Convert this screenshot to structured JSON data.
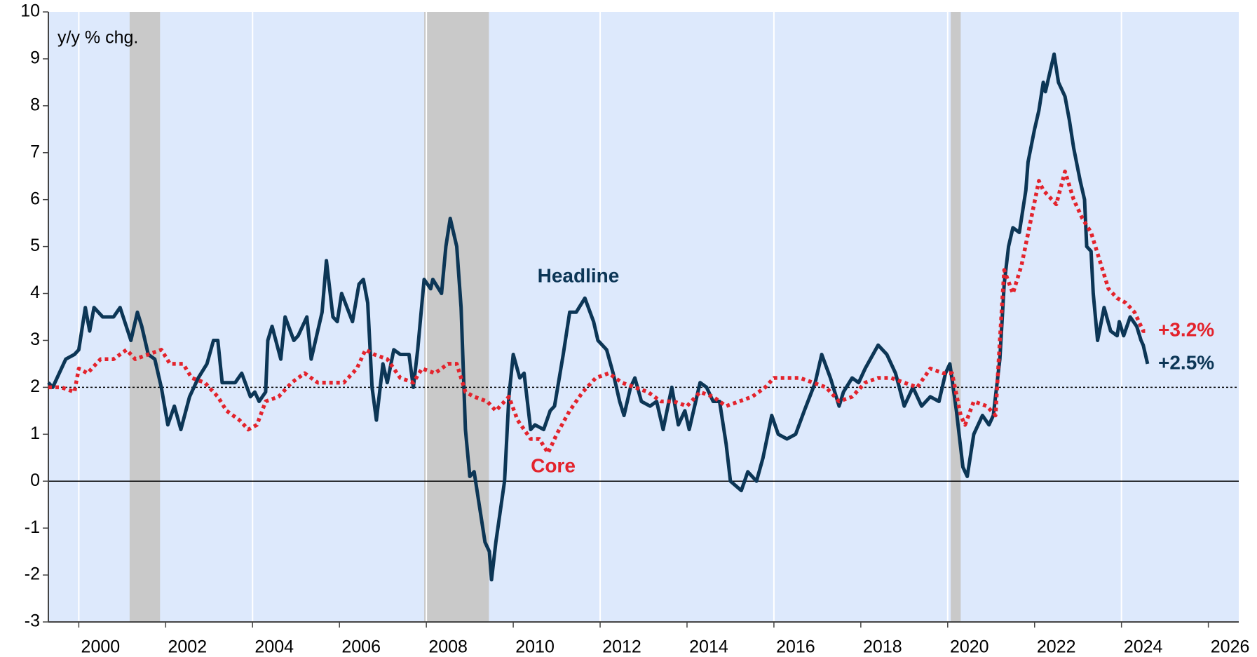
{
  "chart_data": {
    "type": "line",
    "ylabel": "y/y % chg.",
    "xlim": [
      1999.3,
      2026.7
    ],
    "ylim": [
      -3,
      10
    ],
    "xticks": [
      2000,
      2002,
      2004,
      2006,
      2008,
      2010,
      2012,
      2014,
      2016,
      2018,
      2020,
      2022,
      2024,
      2026
    ],
    "yticks": [
      -3,
      -2,
      -1,
      0,
      1,
      2,
      3,
      4,
      5,
      6,
      7,
      8,
      9,
      10
    ],
    "grid": true,
    "reference_line": 2,
    "recessions": [
      [
        2001.17,
        2001.87
      ],
      [
        2007.95,
        2009.44
      ],
      [
        2020.07,
        2020.3
      ]
    ],
    "series": [
      {
        "name": "Headline",
        "color": "#0c3656",
        "style": "solid",
        "end_label": "+2.5%",
        "x": [
          1999.3,
          1999.4,
          1999.55,
          1999.7,
          1999.9,
          2000.0,
          2000.15,
          2000.25,
          2000.35,
          2000.55,
          2000.8,
          2000.95,
          2001.2,
          2001.35,
          2001.45,
          2001.6,
          2001.75,
          2001.9,
          2002.05,
          2002.2,
          2002.35,
          2002.55,
          2002.75,
          2002.95,
          2003.1,
          2003.2,
          2003.3,
          2003.6,
          2003.75,
          2003.95,
          2004.05,
          2004.15,
          2004.3,
          2004.35,
          2004.45,
          2004.65,
          2004.75,
          2004.95,
          2005.05,
          2005.25,
          2005.35,
          2005.6,
          2005.7,
          2005.85,
          2005.95,
          2006.05,
          2006.3,
          2006.45,
          2006.55,
          2006.65,
          2006.75,
          2006.85,
          2007.0,
          2007.1,
          2007.25,
          2007.4,
          2007.6,
          2007.7,
          2007.8,
          2007.95,
          2008.1,
          2008.15,
          2008.35,
          2008.45,
          2008.55,
          2008.7,
          2008.8,
          2008.9,
          2009.0,
          2009.1,
          2009.2,
          2009.35,
          2009.45,
          2009.5,
          2009.6,
          2009.8,
          2009.9,
          2010.0,
          2010.15,
          2010.25,
          2010.4,
          2010.5,
          2010.7,
          2010.85,
          2010.95,
          2011.15,
          2011.3,
          2011.45,
          2011.65,
          2011.85,
          2011.95,
          2012.15,
          2012.3,
          2012.45,
          2012.55,
          2012.7,
          2012.8,
          2012.95,
          2013.15,
          2013.3,
          2013.45,
          2013.65,
          2013.8,
          2013.95,
          2014.05,
          2014.3,
          2014.45,
          2014.6,
          2014.75,
          2014.9,
          2015.0,
          2015.25,
          2015.4,
          2015.6,
          2015.75,
          2015.95,
          2016.1,
          2016.3,
          2016.5,
          2016.7,
          2016.95,
          2017.1,
          2017.3,
          2017.5,
          2017.6,
          2017.8,
          2017.95,
          2018.1,
          2018.4,
          2018.6,
          2018.8,
          2019.0,
          2019.2,
          2019.4,
          2019.6,
          2019.8,
          2019.95,
          2020.05,
          2020.2,
          2020.35,
          2020.45,
          2020.6,
          2020.8,
          2020.95,
          2021.05,
          2021.2,
          2021.3,
          2021.4,
          2021.5,
          2021.65,
          2021.8,
          2021.85,
          2022.0,
          2022.1,
          2022.2,
          2022.25,
          2022.45,
          2022.55,
          2022.7,
          2022.8,
          2022.9,
          2023.05,
          2023.15,
          2023.2,
          2023.3,
          2023.35,
          2023.45,
          2023.6,
          2023.75,
          2023.9,
          2023.95,
          2024.05,
          2024.2,
          2024.35,
          2024.45,
          2024.5,
          2024.6
        ],
        "values": [
          2.1,
          2.0,
          2.3,
          2.6,
          2.7,
          2.8,
          3.7,
          3.2,
          3.7,
          3.5,
          3.5,
          3.7,
          3.0,
          3.6,
          3.3,
          2.7,
          2.6,
          2.0,
          1.2,
          1.6,
          1.1,
          1.8,
          2.2,
          2.5,
          3.0,
          3.0,
          2.1,
          2.1,
          2.3,
          1.8,
          1.9,
          1.7,
          1.9,
          3.0,
          3.3,
          2.6,
          3.5,
          3.0,
          3.1,
          3.5,
          2.6,
          3.6,
          4.7,
          3.5,
          3.4,
          4.0,
          3.4,
          4.2,
          4.3,
          3.8,
          2.0,
          1.3,
          2.5,
          2.1,
          2.8,
          2.7,
          2.7,
          2.0,
          2.8,
          4.3,
          4.1,
          4.3,
          4.0,
          5.0,
          5.6,
          5.0,
          3.7,
          1.1,
          0.1,
          0.2,
          -0.4,
          -1.3,
          -1.5,
          -2.1,
          -1.3,
          0.0,
          1.8,
          2.7,
          2.2,
          2.3,
          1.1,
          1.2,
          1.1,
          1.5,
          1.6,
          2.7,
          3.6,
          3.6,
          3.9,
          3.4,
          3.0,
          2.8,
          2.3,
          1.7,
          1.4,
          2.0,
          2.2,
          1.7,
          1.6,
          1.7,
          1.1,
          2.0,
          1.2,
          1.5,
          1.1,
          2.1,
          2.0,
          1.7,
          1.7,
          0.8,
          0.0,
          -0.2,
          0.2,
          0.0,
          0.5,
          1.4,
          1.0,
          0.9,
          1.0,
          1.5,
          2.1,
          2.7,
          2.2,
          1.6,
          1.9,
          2.2,
          2.1,
          2.4,
          2.9,
          2.7,
          2.3,
          1.6,
          2.0,
          1.6,
          1.8,
          1.7,
          2.3,
          2.5,
          1.5,
          0.3,
          0.1,
          1.0,
          1.4,
          1.2,
          1.4,
          2.6,
          4.2,
          5.0,
          5.4,
          5.3,
          6.2,
          6.8,
          7.5,
          7.9,
          8.5,
          8.3,
          9.1,
          8.5,
          8.2,
          7.7,
          7.1,
          6.4,
          6.0,
          5.0,
          4.9,
          4.0,
          3.0,
          3.7,
          3.2,
          3.1,
          3.4,
          3.1,
          3.5,
          3.3,
          3.0,
          2.9,
          2.5
        ]
      },
      {
        "name": "Core",
        "color": "#e3232c",
        "style": "dotted",
        "end_label": "+3.2%",
        "x": [
          1999.3,
          1999.6,
          1999.9,
          2000.0,
          2000.2,
          2000.5,
          2000.8,
          2001.1,
          2001.3,
          2001.6,
          2001.9,
          2002.1,
          2002.4,
          2002.6,
          2002.9,
          2003.2,
          2003.4,
          2003.7,
          2003.9,
          2004.1,
          2004.3,
          2004.6,
          2004.9,
          2005.2,
          2005.5,
          2005.8,
          2006.1,
          2006.4,
          2006.6,
          2006.8,
          2007.1,
          2007.4,
          2007.7,
          2007.9,
          2008.2,
          2008.5,
          2008.7,
          2008.9,
          2009.1,
          2009.4,
          2009.6,
          2009.9,
          2010.1,
          2010.4,
          2010.6,
          2010.8,
          2011.0,
          2011.3,
          2011.6,
          2011.9,
          2012.2,
          2012.5,
          2012.8,
          2013.1,
          2013.4,
          2013.7,
          2014.0,
          2014.3,
          2014.6,
          2014.9,
          2015.2,
          2015.5,
          2015.8,
          2016.0,
          2016.3,
          2016.6,
          2016.9,
          2017.2,
          2017.5,
          2017.8,
          2018.1,
          2018.4,
          2018.7,
          2019.0,
          2019.3,
          2019.6,
          2019.9,
          2020.1,
          2020.3,
          2020.4,
          2020.6,
          2020.9,
          2021.1,
          2021.2,
          2021.3,
          2021.5,
          2021.7,
          2021.9,
          2022.1,
          2022.2,
          2022.5,
          2022.7,
          2022.9,
          2023.1,
          2023.3,
          2023.5,
          2023.7,
          2023.9,
          2024.1,
          2024.3,
          2024.5,
          2024.6
        ],
        "values": [
          2.0,
          2.0,
          1.9,
          2.4,
          2.3,
          2.6,
          2.6,
          2.8,
          2.6,
          2.7,
          2.8,
          2.5,
          2.5,
          2.2,
          2.1,
          1.8,
          1.5,
          1.3,
          1.1,
          1.2,
          1.7,
          1.8,
          2.1,
          2.3,
          2.1,
          2.1,
          2.1,
          2.4,
          2.8,
          2.7,
          2.6,
          2.2,
          2.1,
          2.4,
          2.3,
          2.5,
          2.5,
          1.9,
          1.8,
          1.7,
          1.5,
          1.8,
          1.3,
          0.9,
          0.9,
          0.6,
          1.0,
          1.5,
          1.9,
          2.2,
          2.3,
          2.1,
          2.0,
          1.9,
          1.7,
          1.7,
          1.6,
          1.9,
          1.8,
          1.6,
          1.7,
          1.8,
          2.0,
          2.2,
          2.2,
          2.2,
          2.1,
          2.0,
          1.7,
          1.8,
          2.1,
          2.2,
          2.2,
          2.1,
          2.0,
          2.4,
          2.3,
          2.3,
          1.4,
          1.2,
          1.7,
          1.6,
          1.4,
          3.0,
          4.5,
          4.0,
          4.6,
          5.5,
          6.4,
          6.2,
          5.9,
          6.6,
          6.0,
          5.6,
          5.3,
          4.7,
          4.1,
          3.9,
          3.8,
          3.6,
          3.2,
          3.2
        ]
      }
    ]
  }
}
